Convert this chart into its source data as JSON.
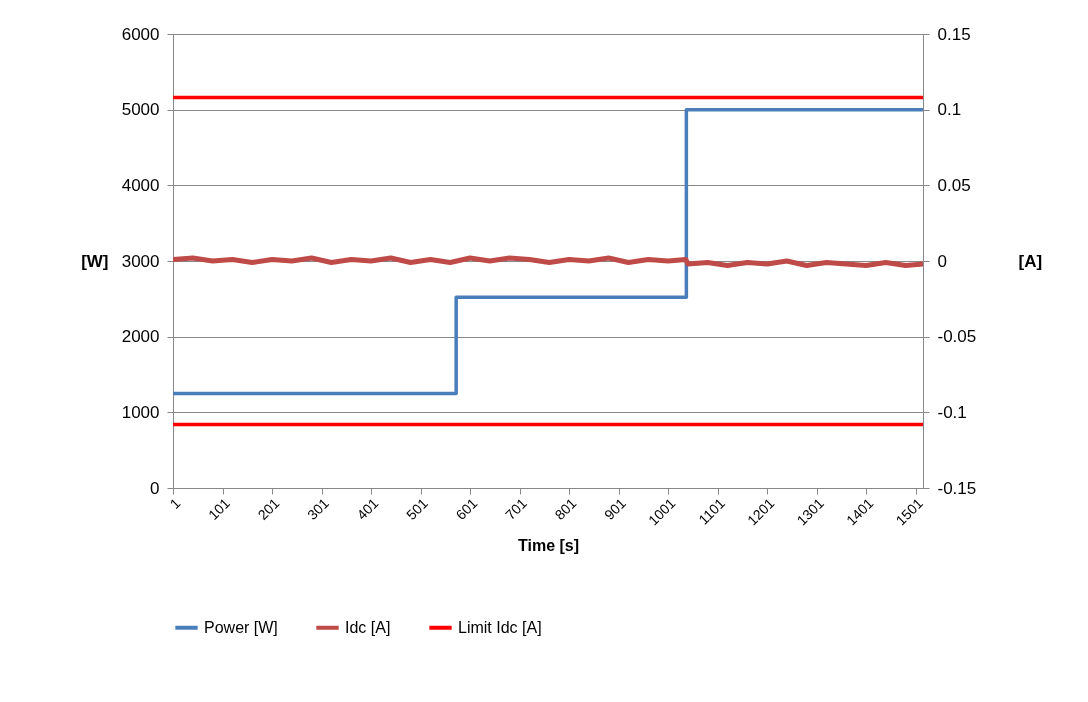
{
  "chart_data": {
    "type": "line",
    "xlabel": "Time [s]",
    "ylabel": "[W]",
    "y2label": "[A]",
    "xlim": [
      1,
      1516
    ],
    "xticks": [
      1,
      101,
      201,
      301,
      401,
      501,
      601,
      701,
      801,
      901,
      1001,
      1101,
      1201,
      1301,
      1401,
      1501
    ],
    "ylim": [
      0,
      6000
    ],
    "yticks": [
      0,
      1000,
      2000,
      3000,
      4000,
      5000,
      6000
    ],
    "y2lim": [
      -0.15,
      0.15
    ],
    "y2ticks": [
      -0.15,
      -0.1,
      -0.05,
      0,
      0.05,
      0.1,
      0.15
    ],
    "grid": "y",
    "legend": "bottom",
    "marker": "none",
    "line_style": "solid",
    "series": [
      {
        "name": "Power [W]",
        "color": "#4a7ebb",
        "x": [
          1,
          573,
          573,
          1038,
          1038,
          1516
        ],
        "values": [
          1250,
          1250,
          2520,
          2520,
          5000,
          5000
        ]
      },
      {
        "name": "Idc [A]",
        "color": "#be4b48",
        "axis": "y2",
        "x": [
          1,
          41,
          81,
          121,
          161,
          201,
          241,
          281,
          321,
          361,
          401,
          441,
          481,
          521,
          561,
          601,
          641,
          681,
          721,
          761,
          801,
          841,
          881,
          921,
          961,
          1001,
          1037,
          1041,
          1081,
          1121,
          1161,
          1201,
          1241,
          1281,
          1321,
          1361,
          1401,
          1441,
          1481,
          1516
        ],
        "values": [
          0.001,
          0.002,
          0,
          0.001,
          -0.001,
          0.001,
          0,
          0.002,
          -0.001,
          0.001,
          0,
          0.002,
          -0.001,
          0.001,
          -0.001,
          0.002,
          0,
          0.002,
          0.001,
          -0.001,
          0.001,
          0,
          0.002,
          -0.001,
          0.001,
          0,
          0.001,
          -0.002,
          -0.001,
          -0.003,
          -0.001,
          -0.002,
          0,
          -0.003,
          -0.001,
          -0.002,
          -0.003,
          -0.001,
          -0.003,
          -0.002
        ]
      },
      {
        "name": "Limit Idc [A]",
        "color": "#ff0000",
        "axis": "y2",
        "x": [
          1,
          1516
        ],
        "values": [
          0.108,
          0.108
        ]
      },
      {
        "color": "#ff0000",
        "axis": "y2",
        "x": [
          1,
          1516
        ],
        "values": [
          -0.108,
          -0.108
        ]
      }
    ]
  }
}
